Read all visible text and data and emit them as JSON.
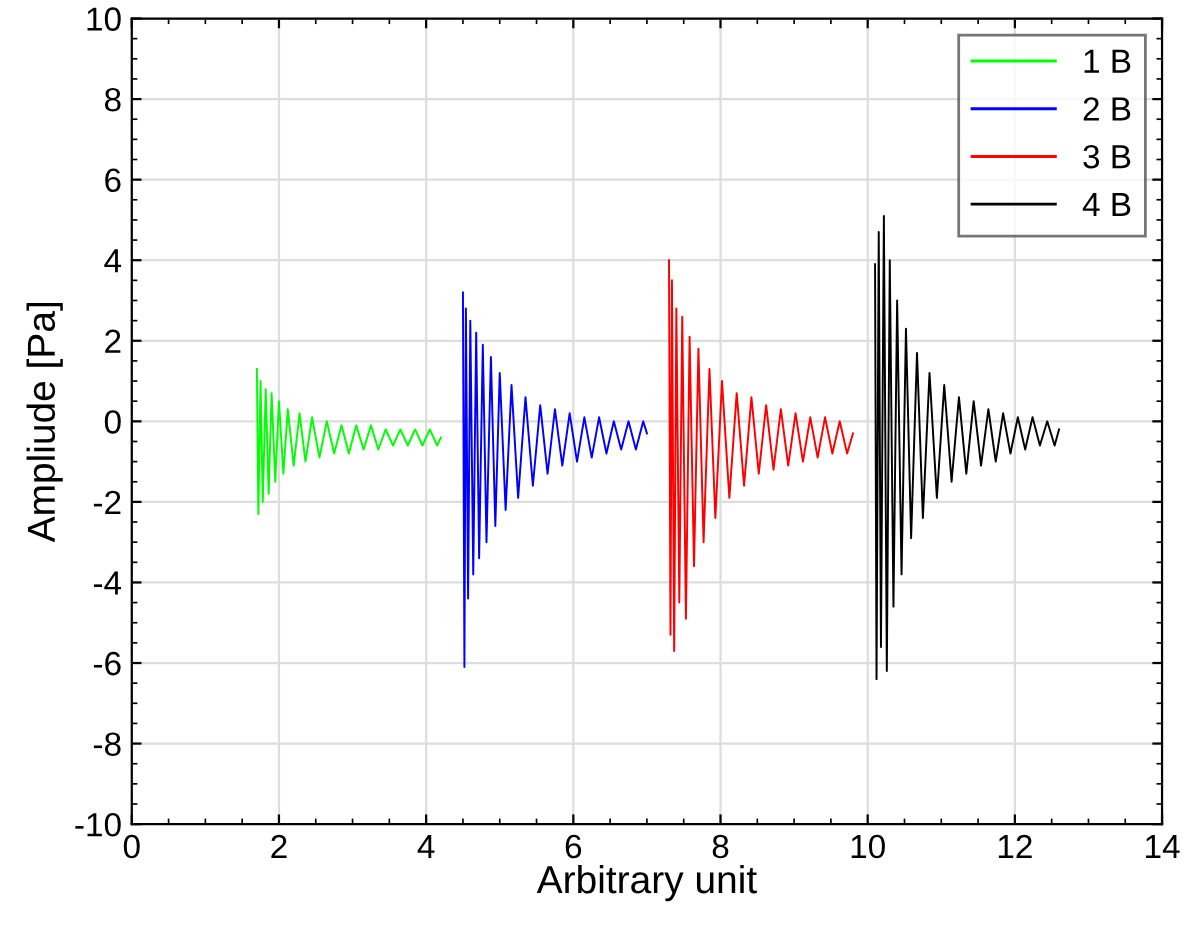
{
  "chart_data": {
    "type": "line",
    "xlabel": "Arbitrary unit",
    "ylabel": "Ampliude [Pa]",
    "xlim": [
      0,
      14
    ],
    "xticks": [
      0,
      2,
      4,
      6,
      8,
      10,
      12,
      14
    ],
    "ylim": [
      -10,
      10
    ],
    "yticks": [
      -10,
      -8,
      -6,
      -4,
      -2,
      0,
      2,
      4,
      6,
      8,
      10
    ],
    "grid": true,
    "legend": "top right",
    "marker": "none",
    "line_style": "solid",
    "series": [
      {
        "name": "1 B",
        "color": "#00ff00",
        "x": [
          1.7,
          1.72,
          1.75,
          1.78,
          1.82,
          1.86,
          1.9,
          1.95,
          2.0,
          2.06,
          2.12,
          2.2,
          2.28,
          2.36,
          2.45,
          2.55,
          2.65,
          2.75,
          2.85,
          2.95,
          3.05,
          3.15,
          3.25,
          3.35,
          3.45,
          3.55,
          3.65,
          3.75,
          3.85,
          3.95,
          4.05,
          4.15,
          4.2
        ],
        "values": [
          1.3,
          -2.3,
          1.0,
          -2.0,
          0.8,
          -1.8,
          0.7,
          -1.5,
          0.5,
          -1.3,
          0.3,
          -1.1,
          0.2,
          -1.0,
          0.1,
          -0.9,
          0.0,
          -0.8,
          -0.1,
          -0.8,
          -0.1,
          -0.7,
          -0.1,
          -0.7,
          -0.2,
          -0.6,
          -0.2,
          -0.6,
          -0.2,
          -0.6,
          -0.2,
          -0.6,
          -0.4
        ]
      },
      {
        "name": "2 B",
        "color": "#0000ff",
        "x": [
          4.5,
          4.52,
          4.54,
          4.57,
          4.6,
          4.64,
          4.68,
          4.72,
          4.77,
          4.82,
          4.88,
          4.94,
          5.0,
          5.08,
          5.16,
          5.25,
          5.35,
          5.45,
          5.55,
          5.65,
          5.75,
          5.85,
          5.95,
          6.05,
          6.15,
          6.25,
          6.35,
          6.45,
          6.55,
          6.65,
          6.75,
          6.85,
          6.95,
          7.0
        ],
        "values": [
          3.2,
          -6.1,
          2.8,
          -4.4,
          2.5,
          -3.8,
          2.2,
          -3.4,
          1.9,
          -3.0,
          1.6,
          -2.6,
          1.2,
          -2.2,
          0.9,
          -1.9,
          0.6,
          -1.6,
          0.4,
          -1.3,
          0.3,
          -1.1,
          0.2,
          -1.0,
          0.1,
          -0.9,
          0.1,
          -0.8,
          0.0,
          -0.7,
          0.0,
          -0.7,
          0.0,
          -0.3
        ]
      },
      {
        "name": "3 B",
        "color": "#ff0000",
        "x": [
          7.3,
          7.32,
          7.34,
          7.37,
          7.4,
          7.44,
          7.48,
          7.53,
          7.58,
          7.64,
          7.7,
          7.77,
          7.85,
          7.93,
          8.02,
          8.12,
          8.22,
          8.32,
          8.42,
          8.52,
          8.62,
          8.72,
          8.82,
          8.92,
          9.02,
          9.12,
          9.22,
          9.32,
          9.42,
          9.52,
          9.62,
          9.72,
          9.8
        ],
        "values": [
          4.0,
          -5.3,
          3.5,
          -5.7,
          2.8,
          -4.5,
          2.6,
          -4.9,
          2.1,
          -3.6,
          1.8,
          -3.0,
          1.3,
          -2.4,
          1.0,
          -1.9,
          0.7,
          -1.6,
          0.6,
          -1.3,
          0.4,
          -1.2,
          0.3,
          -1.1,
          0.2,
          -1.0,
          0.1,
          -0.9,
          0.1,
          -0.8,
          0.0,
          -0.8,
          -0.3
        ]
      },
      {
        "name": "4 B",
        "color": "#000000",
        "x": [
          10.1,
          10.12,
          10.15,
          10.18,
          10.22,
          10.26,
          10.3,
          10.35,
          10.4,
          10.46,
          10.52,
          10.59,
          10.67,
          10.75,
          10.84,
          10.94,
          11.04,
          11.14,
          11.24,
          11.34,
          11.44,
          11.54,
          11.64,
          11.74,
          11.84,
          11.94,
          12.04,
          12.14,
          12.24,
          12.34,
          12.44,
          12.54,
          12.6
        ],
        "values": [
          3.9,
          -6.4,
          4.7,
          -5.6,
          5.1,
          -6.2,
          4.0,
          -4.6,
          3.0,
          -3.8,
          2.3,
          -2.9,
          1.7,
          -2.4,
          1.2,
          -1.9,
          0.9,
          -1.5,
          0.6,
          -1.3,
          0.5,
          -1.1,
          0.3,
          -1.0,
          0.2,
          -0.8,
          0.1,
          -0.7,
          0.1,
          -0.6,
          0.0,
          -0.6,
          -0.2
        ]
      }
    ]
  }
}
